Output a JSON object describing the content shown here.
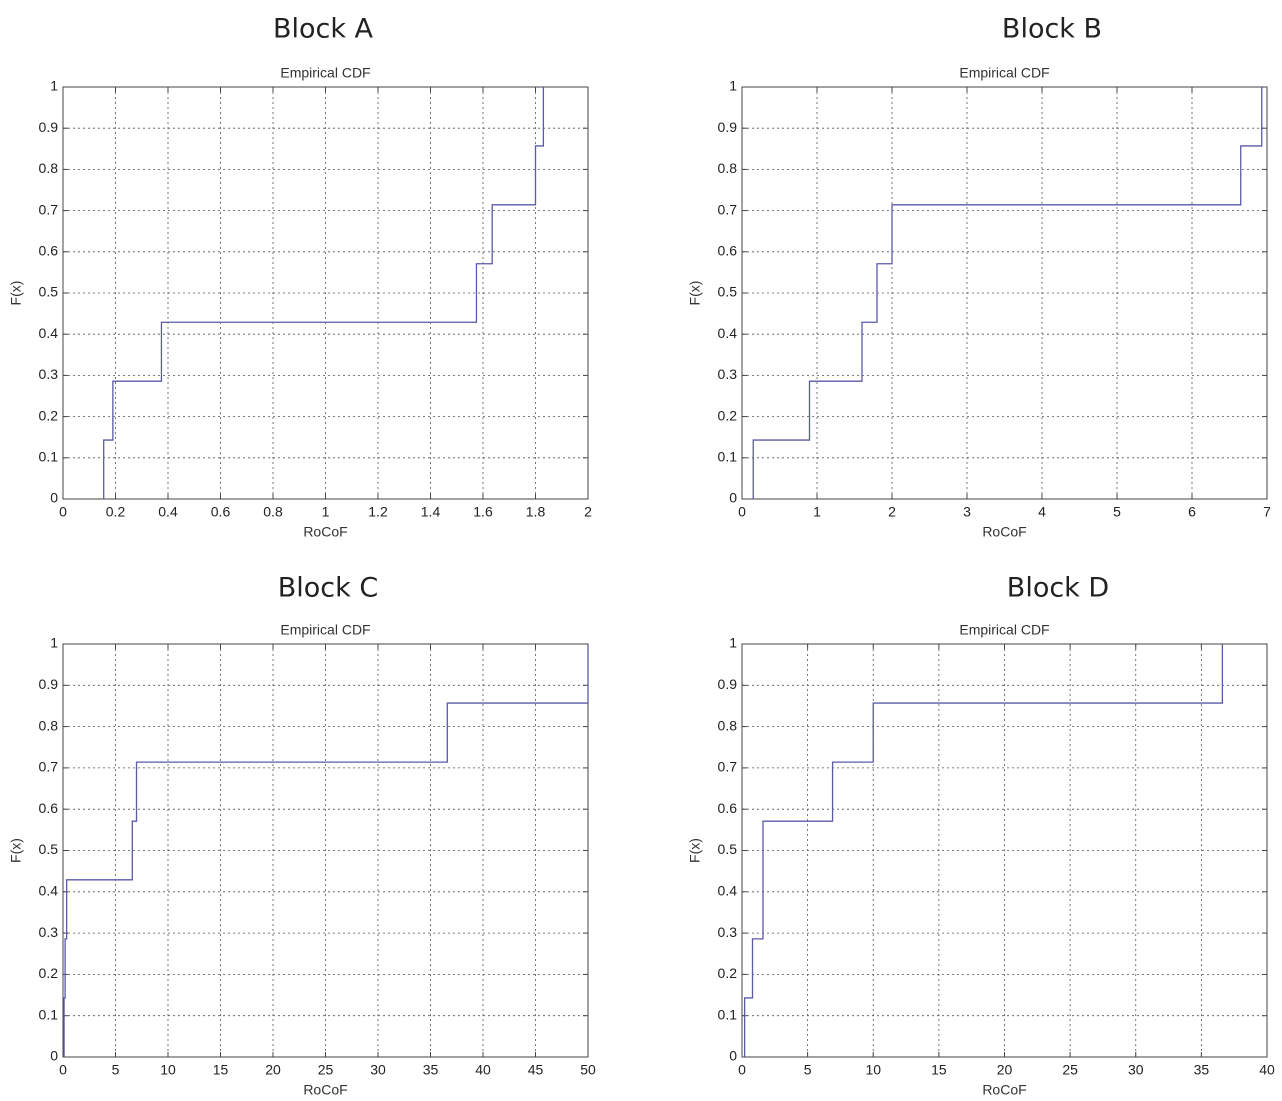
{
  "chart_data": [
    {
      "type": "line",
      "block_title": "Block A",
      "title": "Empirical CDF",
      "xlabel": "RoCoF",
      "ylabel": "F(x)",
      "xlim": [
        0,
        2
      ],
      "ylim": [
        0,
        1
      ],
      "xticks": [
        0,
        0.2,
        0.4,
        0.6,
        0.8,
        1,
        1.2,
        1.4,
        1.6,
        1.8,
        2
      ],
      "xtick_labels": [
        "0",
        "0.2",
        "0.4",
        "0.6",
        "0.8",
        "1",
        "1.2",
        "1.4",
        "1.6",
        "1.8",
        "2"
      ],
      "yticks": [
        0,
        0.1,
        0.2,
        0.3,
        0.4,
        0.5,
        0.6,
        0.7,
        0.8,
        0.9,
        1
      ],
      "ytick_labels": [
        "0",
        "0.1",
        "0.2",
        "0.3",
        "0.4",
        "0.5",
        "0.6",
        "0.7",
        "0.8",
        "0.9",
        "1"
      ],
      "grid": true,
      "color": "#5a5aa8",
      "steps": [
        {
          "x": 0.155,
          "y": 0.143
        },
        {
          "x": 0.19,
          "y": 0.286
        },
        {
          "x": 0.375,
          "y": 0.429
        },
        {
          "x": 1.575,
          "y": 0.571
        },
        {
          "x": 1.635,
          "y": 0.714
        },
        {
          "x": 1.8,
          "y": 0.857
        },
        {
          "x": 1.83,
          "y": 1.0
        }
      ]
    },
    {
      "type": "line",
      "block_title": "Block B",
      "title": "Empirical CDF",
      "xlabel": "RoCoF",
      "ylabel": "F(x)",
      "xlim": [
        0,
        7
      ],
      "ylim": [
        0,
        1
      ],
      "xticks": [
        0,
        1,
        2,
        3,
        4,
        5,
        6,
        7
      ],
      "xtick_labels": [
        "0",
        "1",
        "2",
        "3",
        "4",
        "5",
        "6",
        "7"
      ],
      "yticks": [
        0,
        0.1,
        0.2,
        0.3,
        0.4,
        0.5,
        0.6,
        0.7,
        0.8,
        0.9,
        1
      ],
      "ytick_labels": [
        "0",
        "0.1",
        "0.2",
        "0.3",
        "0.4",
        "0.5",
        "0.6",
        "0.7",
        "0.8",
        "0.9",
        "1"
      ],
      "grid": true,
      "color": "#5a5aa8",
      "steps": [
        {
          "x": 0.15,
          "y": 0.143
        },
        {
          "x": 0.9,
          "y": 0.286
        },
        {
          "x": 1.6,
          "y": 0.429
        },
        {
          "x": 1.8,
          "y": 0.571
        },
        {
          "x": 2.0,
          "y": 0.714
        },
        {
          "x": 6.65,
          "y": 0.857
        },
        {
          "x": 6.93,
          "y": 1.0
        }
      ]
    },
    {
      "type": "line",
      "block_title": "Block C",
      "title": "Empirical CDF",
      "xlabel": "RoCoF",
      "ylabel": "F(x)",
      "xlim": [
        0,
        50
      ],
      "ylim": [
        0,
        1
      ],
      "xticks": [
        0,
        5,
        10,
        15,
        20,
        25,
        30,
        35,
        40,
        45,
        50
      ],
      "xtick_labels": [
        "0",
        "5",
        "10",
        "15",
        "20",
        "25",
        "30",
        "35",
        "40",
        "45",
        "50"
      ],
      "yticks": [
        0,
        0.1,
        0.2,
        0.3,
        0.4,
        0.5,
        0.6,
        0.7,
        0.8,
        0.9,
        1
      ],
      "ytick_labels": [
        "0",
        "0.1",
        "0.2",
        "0.3",
        "0.4",
        "0.5",
        "0.6",
        "0.7",
        "0.8",
        "0.9",
        "1"
      ],
      "grid": true,
      "color": "#5a5aa8",
      "steps": [
        {
          "x": 0.1,
          "y": 0.143
        },
        {
          "x": 0.2,
          "y": 0.286
        },
        {
          "x": 0.35,
          "y": 0.429
        },
        {
          "x": 6.6,
          "y": 0.571
        },
        {
          "x": 7.0,
          "y": 0.714
        },
        {
          "x": 36.6,
          "y": 0.857
        },
        {
          "x": 50.0,
          "y": 1.0
        }
      ]
    },
    {
      "type": "line",
      "block_title": "Block D",
      "title": "Empirical CDF",
      "xlabel": "RoCoF",
      "ylabel": "F(x)",
      "xlim": [
        0,
        40
      ],
      "ylim": [
        0,
        1
      ],
      "xticks": [
        0,
        5,
        10,
        15,
        20,
        25,
        30,
        35,
        40
      ],
      "xtick_labels": [
        "0",
        "5",
        "10",
        "15",
        "20",
        "25",
        "30",
        "35",
        "40"
      ],
      "yticks": [
        0,
        0.1,
        0.2,
        0.3,
        0.4,
        0.5,
        0.6,
        0.7,
        0.8,
        0.9,
        1
      ],
      "ytick_labels": [
        "0",
        "0.1",
        "0.2",
        "0.3",
        "0.4",
        "0.5",
        "0.6",
        "0.7",
        "0.8",
        "0.9",
        "1"
      ],
      "grid": true,
      "color": "#5a5aa8",
      "steps": [
        {
          "x": 0.2,
          "y": 0.143
        },
        {
          "x": 0.8,
          "y": 0.286
        },
        {
          "x": 1.6,
          "y": 0.571
        },
        {
          "x": 6.9,
          "y": 0.714
        },
        {
          "x": 10.0,
          "y": 0.857
        },
        {
          "x": 36.6,
          "y": 1.0
        }
      ]
    }
  ]
}
